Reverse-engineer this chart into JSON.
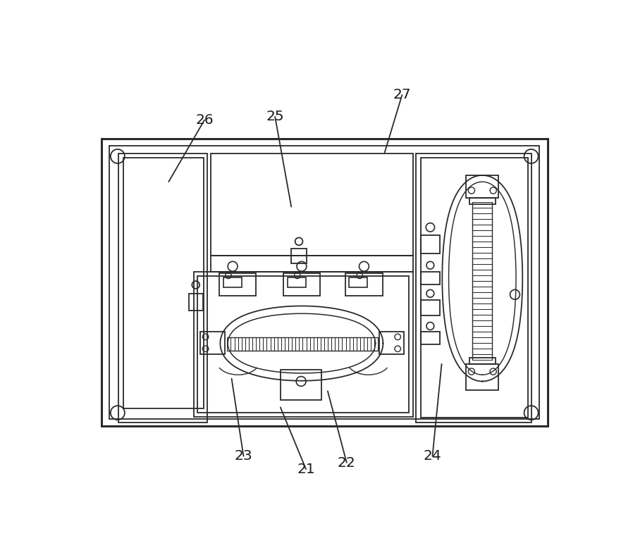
{
  "bg_color": "#ffffff",
  "line_color": "#2a2a2a",
  "lw": 1.3,
  "lw2": 2.0,
  "annotations": [
    [
      "21",
      415,
      742,
      368,
      628
    ],
    [
      "22",
      490,
      730,
      455,
      598
    ],
    [
      "23",
      300,
      718,
      278,
      575
    ],
    [
      "24",
      648,
      718,
      665,
      548
    ],
    [
      "25",
      358,
      92,
      388,
      258
    ],
    [
      "26",
      228,
      98,
      162,
      212
    ],
    [
      "27",
      592,
      52,
      560,
      158
    ]
  ]
}
